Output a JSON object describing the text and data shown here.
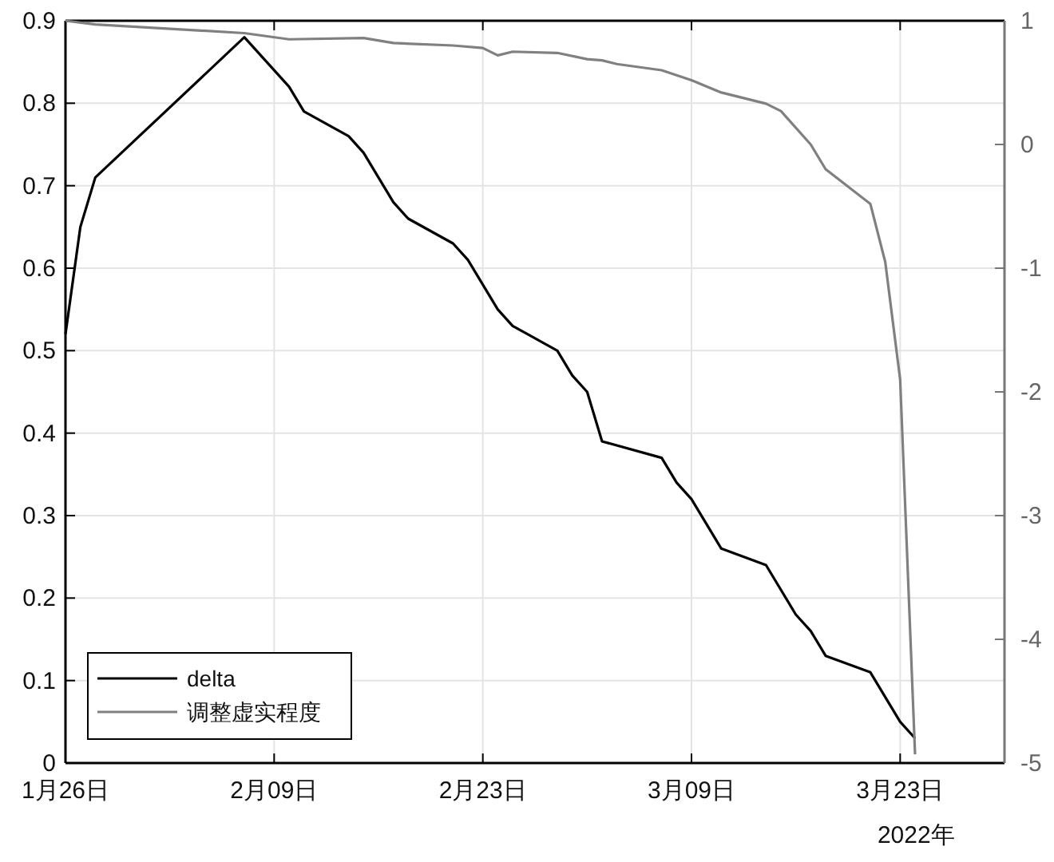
{
  "chart_data": {
    "type": "line",
    "xlim": [
      "2022-01-26",
      "2022-03-30"
    ],
    "xticks": [
      {
        "value": "2022-01-26",
        "label": "1月26日"
      },
      {
        "value": "2022-02-09",
        "label": "2月09日"
      },
      {
        "value": "2022-02-23",
        "label": "2月23日"
      },
      {
        "value": "2022-03-09",
        "label": "3月09日"
      },
      {
        "value": "2022-03-23",
        "label": "3月23日"
      }
    ],
    "ylim": [
      0,
      0.9
    ],
    "yticks": [
      0,
      0.1,
      0.2,
      0.3,
      0.4,
      0.5,
      0.6,
      0.7,
      0.8,
      0.9
    ],
    "y2lim": [
      -5,
      1
    ],
    "y2ticks": [
      -5,
      -4,
      -3,
      -2,
      -1,
      0,
      1
    ],
    "grid": true,
    "legend": "bottom left",
    "annotations": [
      "2022年"
    ],
    "series": [
      {
        "name": "delta",
        "color": "#000000",
        "x": [
          "2022-01-26",
          "2022-01-27",
          "2022-01-28",
          "2022-02-07",
          "2022-02-10",
          "2022-02-11",
          "2022-02-14",
          "2022-02-15",
          "2022-02-17",
          "2022-02-18",
          "2022-02-21",
          "2022-02-22",
          "2022-02-24",
          "2022-02-25",
          "2022-02-26",
          "2022-02-28",
          "2022-03-01",
          "2022-03-02",
          "2022-03-03",
          "2022-03-07",
          "2022-03-08",
          "2022-03-09",
          "2022-03-11",
          "2022-03-14",
          "2022-03-16",
          "2022-03-17",
          "2022-03-18",
          "2022-03-21",
          "2022-03-23",
          "2022-03-24"
        ],
        "values": [
          0.52,
          0.65,
          0.71,
          0.88,
          0.82,
          0.79,
          0.76,
          0.74,
          0.68,
          0.66,
          0.63,
          0.61,
          0.55,
          0.53,
          0.52,
          0.5,
          0.47,
          0.45,
          0.39,
          0.37,
          0.34,
          0.32,
          0.26,
          0.24,
          0.18,
          0.16,
          0.13,
          0.11,
          0.05,
          0.03
        ]
      },
      {
        "name": "调整虚实程度",
        "color": "#808080",
        "axis": "y2",
        "x": [
          "2022-01-26",
          "2022-01-28",
          "2022-02-07",
          "2022-02-10",
          "2022-02-15",
          "2022-02-17",
          "2022-02-21",
          "2022-02-23",
          "2022-02-24",
          "2022-02-25",
          "2022-02-28",
          "2022-03-02",
          "2022-03-03",
          "2022-03-04",
          "2022-03-07",
          "2022-03-09",
          "2022-03-11",
          "2022-03-14",
          "2022-03-15",
          "2022-03-17",
          "2022-03-18",
          "2022-03-21",
          "2022-03-22",
          "2022-03-23",
          "2022-03-24"
        ],
        "values": [
          1.0,
          0.97,
          0.9,
          0.85,
          0.86,
          0.82,
          0.8,
          0.78,
          0.72,
          0.75,
          0.74,
          0.69,
          0.68,
          0.65,
          0.6,
          0.52,
          0.42,
          0.33,
          0.27,
          0.0,
          -0.2,
          -0.48,
          -0.95,
          -1.9,
          -4.93
        ]
      }
    ]
  }
}
